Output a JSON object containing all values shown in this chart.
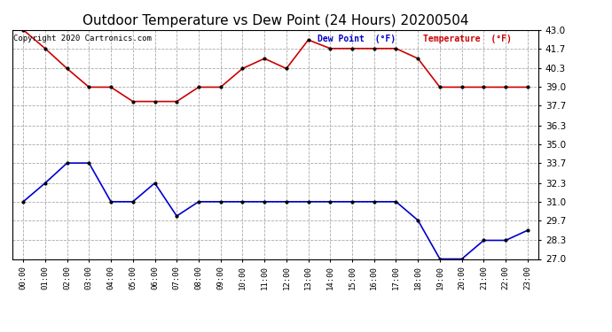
{
  "title": "Outdoor Temperature vs Dew Point (24 Hours) 20200504",
  "copyright_text": "Copyright 2020 Cartronics.com",
  "legend_dew": "Dew Point  (°F)",
  "legend_temp": "Temperature  (°F)",
  "x_labels": [
    "00:00",
    "01:00",
    "02:00",
    "03:00",
    "04:00",
    "05:00",
    "06:00",
    "07:00",
    "08:00",
    "09:00",
    "10:00",
    "11:00",
    "12:00",
    "13:00",
    "14:00",
    "15:00",
    "16:00",
    "17:00",
    "18:00",
    "19:00",
    "20:00",
    "21:00",
    "22:00",
    "23:00"
  ],
  "temperature": [
    43.0,
    41.7,
    40.3,
    39.0,
    39.0,
    38.0,
    38.0,
    38.0,
    39.0,
    39.0,
    40.3,
    41.0,
    40.3,
    42.3,
    41.7,
    41.7,
    41.7,
    41.7,
    41.0,
    39.0,
    39.0,
    39.0,
    39.0,
    39.0
  ],
  "dew_point": [
    31.0,
    32.3,
    33.7,
    33.7,
    31.0,
    31.0,
    32.3,
    30.0,
    31.0,
    31.0,
    31.0,
    31.0,
    31.0,
    31.0,
    31.0,
    31.0,
    31.0,
    31.0,
    29.7,
    27.0,
    27.0,
    28.3,
    28.3,
    29.0
  ],
  "y_ticks": [
    27.0,
    28.3,
    29.7,
    31.0,
    32.3,
    33.7,
    35.0,
    36.3,
    37.7,
    39.0,
    40.3,
    41.7,
    43.0
  ],
  "y_min": 27.0,
  "y_max": 43.0,
  "temp_color": "#cc0000",
  "dew_color": "#0000cc",
  "grid_color": "#aaaaaa",
  "bg_color": "#ffffff",
  "title_fontsize": 11,
  "copyright_color": "#000000",
  "legend_dew_color": "#0000cc",
  "legend_temp_color": "#cc0000"
}
